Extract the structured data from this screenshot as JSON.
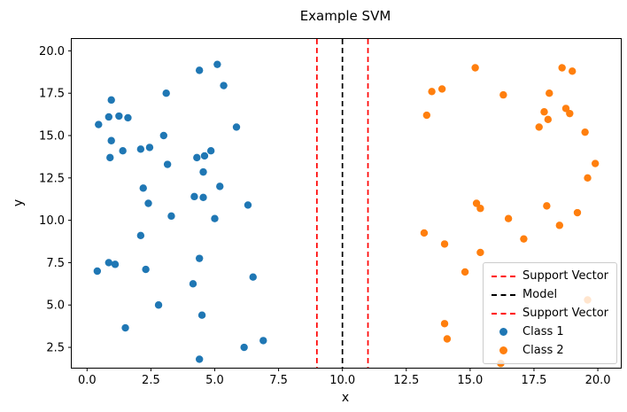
{
  "chart_data": {
    "type": "scatter",
    "title": "Example SVM",
    "xlabel": "x",
    "ylabel": "y",
    "xlim": [
      -0.6,
      20.9
    ],
    "ylim": [
      1.3,
      20.7
    ],
    "xticks": [
      0.0,
      2.5,
      5.0,
      7.5,
      10.0,
      12.5,
      15.0,
      17.5,
      20.0
    ],
    "yticks": [
      2.5,
      5.0,
      7.5,
      10.0,
      12.5,
      15.0,
      17.5,
      20.0
    ],
    "grid": false,
    "series": [
      {
        "name": "Class 1",
        "color": "#1f77b4",
        "marker": "circle",
        "points": [
          [
            0.45,
            15.65
          ],
          [
            0.95,
            17.1
          ],
          [
            0.85,
            16.1
          ],
          [
            1.25,
            16.15
          ],
          [
            1.6,
            16.05
          ],
          [
            0.95,
            14.7
          ],
          [
            0.9,
            13.7
          ],
          [
            1.4,
            14.1
          ],
          [
            2.1,
            14.2
          ],
          [
            2.45,
            14.3
          ],
          [
            3.0,
            15.0
          ],
          [
            3.1,
            17.5
          ],
          [
            4.4,
            18.85
          ],
          [
            5.1,
            19.2
          ],
          [
            5.35,
            17.95
          ],
          [
            5.85,
            15.5
          ],
          [
            4.85,
            14.1
          ],
          [
            4.3,
            13.7
          ],
          [
            4.6,
            13.8
          ],
          [
            4.55,
            12.85
          ],
          [
            4.2,
            11.4
          ],
          [
            4.55,
            11.35
          ],
          [
            5.2,
            12.0
          ],
          [
            5.0,
            10.1
          ],
          [
            3.15,
            13.3
          ],
          [
            3.3,
            10.25
          ],
          [
            2.2,
            11.9
          ],
          [
            2.4,
            11.0
          ],
          [
            2.1,
            9.1
          ],
          [
            2.3,
            7.1
          ],
          [
            2.8,
            5.0
          ],
          [
            1.5,
            3.65
          ],
          [
            0.4,
            7.0
          ],
          [
            0.85,
            7.5
          ],
          [
            1.1,
            7.4
          ],
          [
            4.4,
            7.75
          ],
          [
            4.15,
            6.25
          ],
          [
            4.5,
            4.4
          ],
          [
            4.4,
            1.8
          ],
          [
            6.3,
            10.9
          ],
          [
            6.5,
            6.65
          ],
          [
            6.15,
            2.5
          ],
          [
            6.9,
            2.9
          ]
        ]
      },
      {
        "name": "Class 2",
        "color": "#ff7f0e",
        "marker": "circle",
        "points": [
          [
            13.3,
            16.2
          ],
          [
            13.5,
            17.6
          ],
          [
            13.9,
            17.75
          ],
          [
            15.2,
            19.0
          ],
          [
            16.3,
            17.4
          ],
          [
            18.6,
            19.0
          ],
          [
            19.0,
            18.8
          ],
          [
            18.1,
            17.5
          ],
          [
            17.9,
            16.4
          ],
          [
            18.05,
            15.95
          ],
          [
            18.75,
            16.6
          ],
          [
            18.9,
            16.3
          ],
          [
            17.7,
            15.5
          ],
          [
            19.5,
            15.2
          ],
          [
            19.9,
            13.35
          ],
          [
            19.6,
            12.5
          ],
          [
            15.25,
            11.0
          ],
          [
            15.4,
            10.7
          ],
          [
            16.5,
            10.1
          ],
          [
            18.0,
            10.85
          ],
          [
            18.5,
            9.7
          ],
          [
            19.2,
            10.45
          ],
          [
            13.2,
            9.25
          ],
          [
            14.0,
            8.6
          ],
          [
            14.8,
            6.95
          ],
          [
            15.4,
            8.1
          ],
          [
            17.1,
            8.9
          ],
          [
            14.0,
            3.9
          ],
          [
            14.1,
            3.0
          ],
          [
            16.2,
            1.55
          ],
          [
            19.6,
            5.3
          ]
        ]
      }
    ],
    "vlines": [
      {
        "x": 9,
        "color": "#ff0000",
        "style": "dashed",
        "label": "Support Vector"
      },
      {
        "x": 10,
        "color": "#000000",
        "style": "dashed",
        "label": "Model"
      },
      {
        "x": 11,
        "color": "#ff0000",
        "style": "dashed",
        "label": "Support Vector"
      }
    ],
    "legend": {
      "position": "lower right",
      "entries": [
        {
          "label": "Support Vector",
          "type": "line",
          "color": "#ff0000",
          "style": "dashed"
        },
        {
          "label": "Model",
          "type": "line",
          "color": "#000000",
          "style": "dashed"
        },
        {
          "label": "Support Vector",
          "type": "line",
          "color": "#ff0000",
          "style": "dashed"
        },
        {
          "label": "Class 1",
          "type": "marker",
          "color": "#1f77b4"
        },
        {
          "label": "Class 2",
          "type": "marker",
          "color": "#ff7f0e"
        }
      ]
    }
  }
}
